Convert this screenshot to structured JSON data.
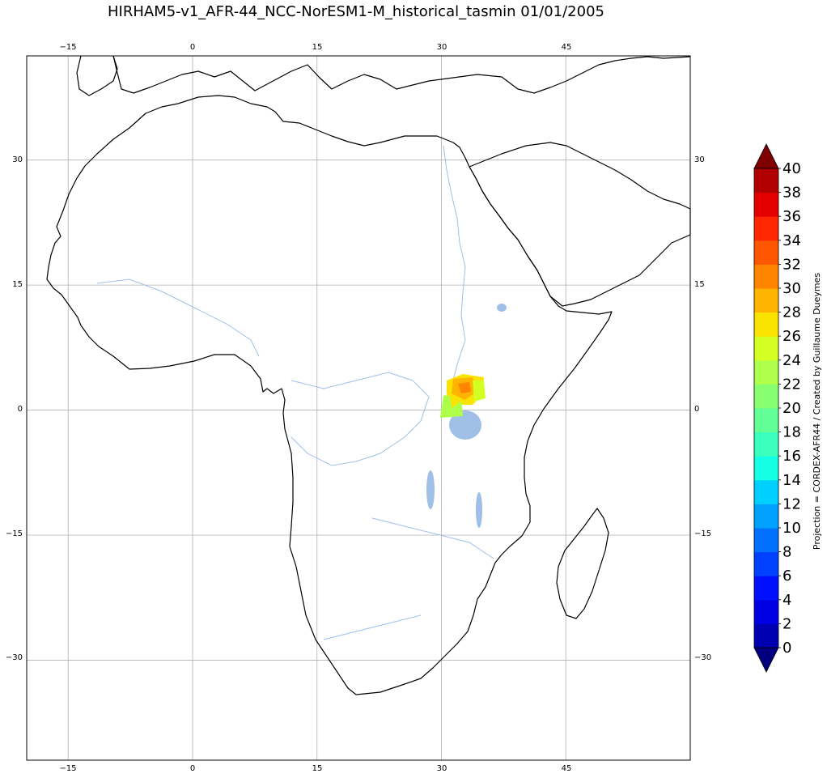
{
  "title": "HIRHAM5-v1_AFR-44_NCC-NorESM1-M_historical_tasmin 01/01/2005",
  "map": {
    "lon_range": [
      -20,
      60
    ],
    "lat_range": [
      -42,
      42.5
    ],
    "lon_ticks": [
      -15,
      0,
      15,
      30,
      45
    ],
    "lat_ticks": [
      30,
      15,
      0,
      -15,
      -30
    ],
    "lon_tick_labels": [
      "−15",
      "0",
      "15",
      "30",
      "45"
    ],
    "lat_tick_labels": [
      "30",
      "15",
      "0",
      "−15",
      "−30"
    ],
    "grid": true,
    "coastline_color": "#000000",
    "river_color": "#9fbfe6",
    "data_region": "Uganda / Lake Victoria area",
    "data_values_range": [
      20,
      32
    ]
  },
  "colorbar": {
    "levels": [
      0,
      2,
      4,
      6,
      8,
      10,
      12,
      14,
      16,
      18,
      20,
      22,
      24,
      26,
      28,
      30,
      32,
      34,
      36,
      38,
      40
    ],
    "labels": [
      "0",
      "2",
      "4",
      "6",
      "8",
      "10",
      "12",
      "14",
      "16",
      "18",
      "20",
      "22",
      "24",
      "26",
      "28",
      "30",
      "32",
      "34",
      "36",
      "38",
      "40"
    ],
    "colors": [
      "#00007f",
      "#0000b2",
      "#0000e5",
      "#0010ff",
      "#0040ff",
      "#0070ff",
      "#00a0ff",
      "#00d0ff",
      "#14ffe3",
      "#3affbd",
      "#61ff96",
      "#87ff70",
      "#adff49",
      "#d4ff23",
      "#fae300",
      "#ffb400",
      "#ff8500",
      "#ff5600",
      "#ff2700",
      "#e50000",
      "#b20000",
      "#7f0000"
    ],
    "under_color": "#00007f",
    "over_color": "#7f0000",
    "side_label": "Projection =  CORDEX-AFR44 / Created by Guillaume Dueymes"
  }
}
